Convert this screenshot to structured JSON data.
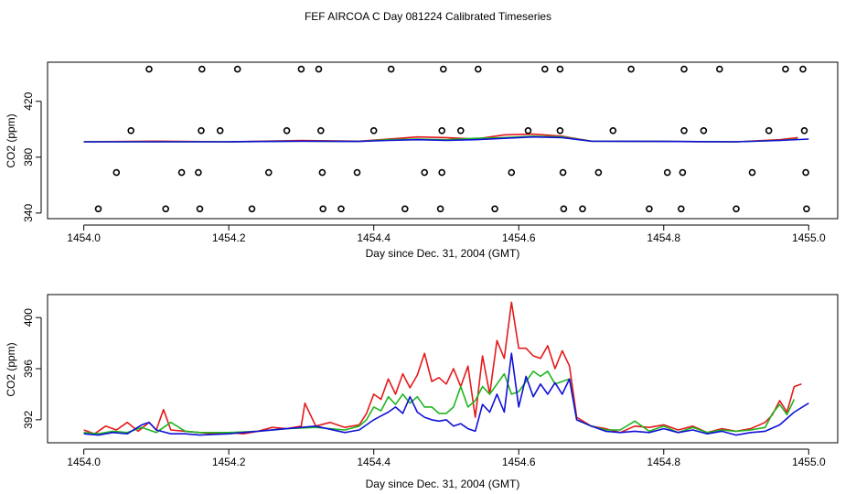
{
  "title": "FEF AIRCOA C  Day 081224  Calibrated Timeseries",
  "colors": {
    "red": "#e41a1c",
    "green": "#1fb51f",
    "blue": "#1010d8",
    "axis": "#000000"
  },
  "chart_data": [
    {
      "type": "scatter+line",
      "xlabel": "Day since Dec. 31, 2004 (GMT)",
      "ylabel": "CO2 (ppm)",
      "xlim": [
        1453.95,
        1455.04
      ],
      "ylim": [
        336,
        448
      ],
      "xticks": [
        1454.0,
        1454.2,
        1454.4,
        1454.6,
        1454.8,
        1455.0
      ],
      "xtick_labels": [
        "1454.0",
        "1454.2",
        "1454.4",
        "1454.6",
        "1454.8",
        "1455.0"
      ],
      "yticks": [
        340,
        380,
        420
      ],
      "ytick_labels": [
        "340",
        "380",
        "420"
      ],
      "calibration_points": [
        {
          "level": 443,
          "x": [
            1454.09,
            1454.163,
            1454.212,
            1454.3,
            1454.324,
            1454.424,
            1454.496,
            1454.544,
            1454.636,
            1454.657,
            1454.755,
            1454.828,
            1454.877,
            1454.968,
            1454.992
          ]
        },
        {
          "level": 399,
          "x": [
            1454.065,
            1454.162,
            1454.188,
            1454.28,
            1454.327,
            1454.4,
            1454.494,
            1454.52,
            1454.613,
            1454.657,
            1454.73,
            1454.828,
            1454.855,
            1454.945,
            1454.994
          ]
        },
        {
          "level": 369,
          "x": [
            1454.045,
            1454.135,
            1454.158,
            1454.255,
            1454.329,
            1454.377,
            1454.47,
            1454.494,
            1454.59,
            1454.661,
            1454.71,
            1454.805,
            1454.826,
            1454.922,
            1454.996
          ]
        },
        {
          "level": 343,
          "x": [
            1454.02,
            1454.113,
            1454.16,
            1454.232,
            1454.33,
            1454.355,
            1454.443,
            1454.492,
            1454.567,
            1454.662,
            1454.688,
            1454.78,
            1454.824,
            1454.9,
            1454.997
          ]
        }
      ],
      "series": [
        {
          "name": "red",
          "color": "red",
          "x": [
            1454.0,
            1454.1,
            1454.2,
            1454.3,
            1454.38,
            1454.42,
            1454.46,
            1454.5,
            1454.54,
            1454.58,
            1454.62,
            1454.66,
            1454.7,
            1454.8,
            1454.9,
            1454.96,
            1454.985
          ],
          "values": [
            391,
            391.5,
            391,
            392,
            391.5,
            393,
            394.5,
            394,
            393,
            396,
            396.5,
            395,
            391.5,
            391.3,
            391,
            392.5,
            394
          ]
        },
        {
          "name": "green",
          "color": "green",
          "x": [
            1454.0,
            1454.2,
            1454.3,
            1454.38,
            1454.42,
            1454.46,
            1454.5,
            1454.54,
            1454.58,
            1454.62,
            1454.66,
            1454.7,
            1454.8,
            1454.9,
            1454.96,
            1454.985
          ],
          "values": [
            391,
            391,
            391.5,
            391.3,
            392.5,
            393,
            392.5,
            393.5,
            394,
            395,
            394.5,
            391.5,
            391.3,
            391,
            392,
            393
          ]
        },
        {
          "name": "blue",
          "color": "blue",
          "x": [
            1454.0,
            1454.2,
            1454.3,
            1454.38,
            1454.42,
            1454.46,
            1454.5,
            1454.54,
            1454.58,
            1454.62,
            1454.66,
            1454.7,
            1454.8,
            1454.9,
            1454.96,
            1455.0
          ],
          "values": [
            391,
            391,
            391.5,
            391.3,
            392,
            392.5,
            392,
            392.5,
            393.5,
            394.5,
            394,
            391.5,
            391.3,
            391,
            392,
            393
          ]
        }
      ]
    },
    {
      "type": "line",
      "xlabel": "Day since Dec. 31, 2004 (GMT)",
      "ylabel": "CO2 (ppm)",
      "xlim": [
        1453.95,
        1455.04
      ],
      "ylim": [
        390.2,
        401.8
      ],
      "xticks": [
        1454.0,
        1454.2,
        1454.4,
        1454.6,
        1454.8,
        1455.0
      ],
      "xtick_labels": [
        "1454.0",
        "1454.2",
        "1454.4",
        "1454.6",
        "1454.8",
        "1455.0"
      ],
      "yticks": [
        392,
        396,
        400
      ],
      "ytick_labels": [
        "392",
        "396",
        "400"
      ],
      "series": [
        {
          "name": "red",
          "color": "red",
          "x": [
            1454.0,
            1454.015,
            1454.03,
            1454.045,
            1454.06,
            1454.075,
            1454.09,
            1454.1,
            1454.11,
            1454.12,
            1454.14,
            1454.16,
            1454.18,
            1454.2,
            1454.22,
            1454.24,
            1454.26,
            1454.28,
            1454.3,
            1454.305,
            1454.32,
            1454.34,
            1454.36,
            1454.38,
            1454.39,
            1454.4,
            1454.41,
            1454.42,
            1454.43,
            1454.44,
            1454.45,
            1454.46,
            1454.47,
            1454.48,
            1454.49,
            1454.5,
            1454.51,
            1454.52,
            1454.53,
            1454.54,
            1454.55,
            1454.56,
            1454.57,
            1454.58,
            1454.59,
            1454.6,
            1454.61,
            1454.62,
            1454.63,
            1454.64,
            1454.65,
            1454.66,
            1454.67,
            1454.68,
            1454.7,
            1454.72,
            1454.74,
            1454.76,
            1454.78,
            1454.8,
            1454.82,
            1454.84,
            1454.86,
            1454.88,
            1454.9,
            1454.92,
            1454.94,
            1454.95,
            1454.96,
            1454.97,
            1454.98,
            1454.99
          ],
          "values": [
            391.2,
            390.9,
            391.5,
            391.2,
            391.8,
            391.1,
            391.8,
            391.2,
            392.8,
            391.2,
            391.1,
            391.0,
            390.9,
            391.0,
            390.9,
            391.1,
            391.4,
            391.3,
            391.5,
            393.3,
            391.5,
            391.8,
            391.4,
            391.6,
            392.5,
            394.0,
            393.6,
            395.2,
            394.0,
            395.6,
            394.5,
            395.5,
            397.2,
            395.0,
            395.3,
            394.8,
            396.0,
            394.6,
            396.2,
            392.2,
            397.0,
            394.0,
            398.2,
            396.8,
            401.2,
            397.6,
            397.6,
            397.0,
            396.8,
            397.8,
            396.0,
            397.4,
            396.2,
            392.2,
            391.5,
            391.3,
            391.0,
            391.5,
            391.4,
            391.6,
            391.2,
            391.5,
            391.0,
            391.3,
            391.1,
            391.3,
            391.8,
            392.4,
            393.5,
            392.6,
            394.6,
            394.8
          ]
        },
        {
          "name": "green",
          "color": "green",
          "x": [
            1454.0,
            1454.02,
            1454.04,
            1454.06,
            1454.08,
            1454.1,
            1454.12,
            1454.14,
            1454.16,
            1454.2,
            1454.24,
            1454.28,
            1454.32,
            1454.36,
            1454.38,
            1454.39,
            1454.4,
            1454.41,
            1454.42,
            1454.43,
            1454.44,
            1454.45,
            1454.46,
            1454.47,
            1454.48,
            1454.49,
            1454.5,
            1454.51,
            1454.52,
            1454.53,
            1454.54,
            1454.55,
            1454.56,
            1454.57,
            1454.58,
            1454.59,
            1454.6,
            1454.61,
            1454.62,
            1454.63,
            1454.64,
            1454.65,
            1454.66,
            1454.67,
            1454.68,
            1454.7,
            1454.72,
            1454.74,
            1454.76,
            1454.78,
            1454.8,
            1454.82,
            1454.84,
            1454.86,
            1454.88,
            1454.9,
            1454.92,
            1454.94,
            1454.95,
            1454.96,
            1454.97,
            1454.98
          ],
          "values": [
            391.0,
            390.9,
            391.1,
            391.0,
            391.4,
            391.0,
            391.8,
            391.1,
            391.0,
            391.0,
            391.1,
            391.3,
            391.4,
            391.2,
            391.5,
            392.0,
            393.0,
            392.7,
            393.8,
            393.2,
            394.0,
            393.3,
            393.8,
            393.0,
            393.0,
            392.5,
            392.5,
            393.0,
            394.6,
            393.0,
            393.5,
            394.6,
            394.0,
            394.8,
            395.6,
            394.0,
            394.2,
            395.0,
            395.8,
            395.4,
            395.8,
            394.8,
            395.0,
            395.2,
            392.0,
            391.5,
            391.2,
            391.2,
            391.9,
            391.1,
            391.5,
            391.0,
            391.4,
            391.0,
            391.2,
            391.1,
            391.2,
            391.4,
            392.5,
            393.2,
            392.4,
            393.6
          ]
        },
        {
          "name": "blue",
          "color": "blue",
          "x": [
            1454.0,
            1454.02,
            1454.04,
            1454.06,
            1454.08,
            1454.09,
            1454.1,
            1454.12,
            1454.14,
            1454.16,
            1454.2,
            1454.24,
            1454.28,
            1454.32,
            1454.36,
            1454.38,
            1454.4,
            1454.41,
            1454.42,
            1454.43,
            1454.44,
            1454.45,
            1454.46,
            1454.47,
            1454.48,
            1454.49,
            1454.5,
            1454.51,
            1454.52,
            1454.53,
            1454.54,
            1454.55,
            1454.56,
            1454.57,
            1454.58,
            1454.59,
            1454.6,
            1454.61,
            1454.62,
            1454.63,
            1454.64,
            1454.65,
            1454.66,
            1454.67,
            1454.68,
            1454.7,
            1454.72,
            1454.74,
            1454.76,
            1454.78,
            1454.8,
            1454.82,
            1454.84,
            1454.86,
            1454.88,
            1454.9,
            1454.92,
            1454.94,
            1454.96,
            1454.98,
            1455.0
          ],
          "values": [
            390.9,
            390.8,
            391.0,
            390.9,
            391.6,
            391.8,
            391.2,
            390.9,
            390.9,
            390.8,
            390.9,
            391.1,
            391.3,
            391.5,
            391.0,
            391.2,
            392.0,
            392.3,
            392.6,
            393.0,
            392.5,
            393.8,
            392.6,
            392.2,
            392.0,
            391.9,
            392.0,
            391.5,
            391.7,
            391.3,
            391.1,
            393.2,
            392.6,
            394.0,
            392.6,
            397.2,
            393.0,
            395.4,
            393.8,
            394.8,
            394.0,
            394.9,
            394.0,
            395.2,
            392.0,
            391.5,
            391.1,
            391.0,
            391.1,
            391.0,
            391.3,
            391.0,
            391.2,
            390.9,
            391.1,
            390.8,
            391.0,
            391.1,
            391.6,
            392.6,
            393.3
          ]
        }
      ]
    }
  ]
}
